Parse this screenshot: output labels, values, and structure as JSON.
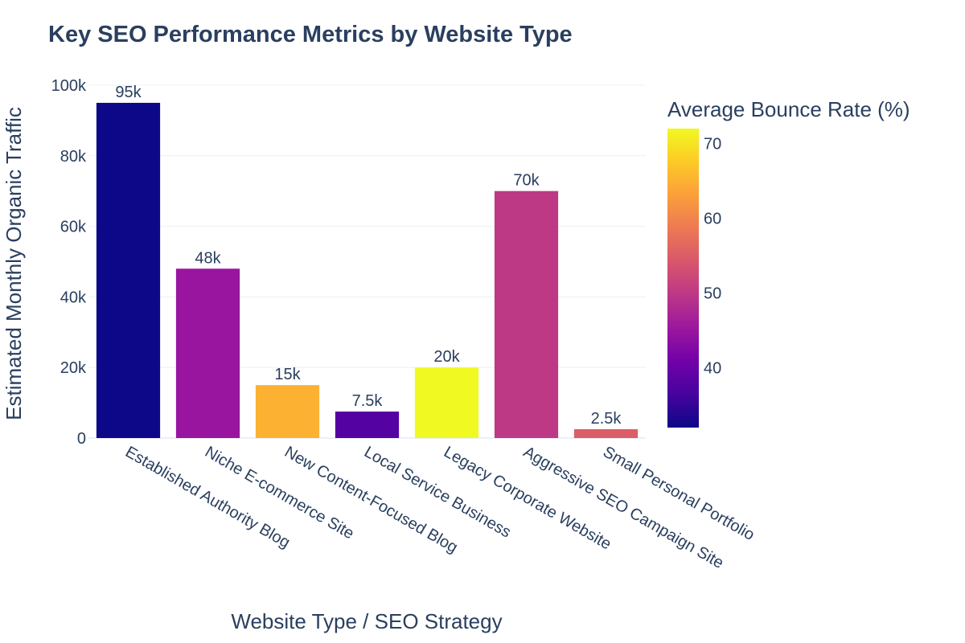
{
  "chart_data": {
    "type": "bar",
    "title": "Key SEO Performance Metrics by Website Type",
    "xlabel": "Website Type / SEO Strategy",
    "ylabel": "Estimated Monthly Organic Traffic",
    "categories": [
      "Established Authority Blog",
      "Niche E-commerce Site",
      "New Content-Focused Blog",
      "Local Service Business",
      "Legacy Corporate Website",
      "Aggressive SEO Campaign Site",
      "Small Personal Portfolio"
    ],
    "values": [
      95000,
      48000,
      15000,
      7500,
      20000,
      70000,
      2500
    ],
    "data_labels": [
      "95k",
      "48k",
      "15k",
      "7.5k",
      "20k",
      "70k",
      "2.5k"
    ],
    "bounce_rates": [
      32,
      45,
      65,
      38,
      72,
      50,
      55
    ],
    "ylim": [
      0,
      100000
    ],
    "yticks": [
      0,
      20000,
      40000,
      60000,
      80000,
      100000
    ],
    "ytick_labels": [
      "0",
      "20k",
      "40k",
      "60k",
      "80k",
      "100k"
    ],
    "grid": true,
    "colorbar": {
      "title": "Average Bounce Rate (%)",
      "range": [
        32,
        72
      ],
      "ticks": [
        40,
        50,
        60,
        70
      ],
      "tick_labels": [
        "40",
        "50",
        "60",
        "70"
      ],
      "colorscale": [
        "#0d0887",
        "#46039f",
        "#7201a8",
        "#9c179e",
        "#bd3786",
        "#d8576b",
        "#ed7953",
        "#fb9f3a",
        "#fdca26",
        "#f0f921"
      ]
    }
  }
}
